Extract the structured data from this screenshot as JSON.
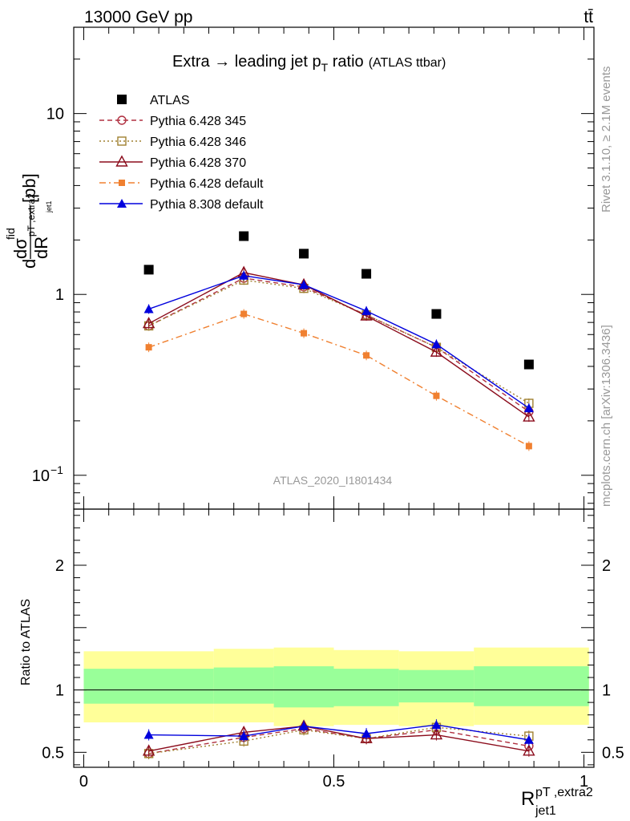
{
  "header": {
    "left": "13000 GeV pp",
    "right": "tt̄"
  },
  "side_labels": {
    "rivet": "Rivet 3.1.10, ≥ 2.1M events",
    "mcplots": "mcplots.cern.ch [arXiv:1306.3436]"
  },
  "watermark": "ATLAS_2020_I1801434",
  "colors": {
    "atlas": "#000000",
    "p345": "#b03040",
    "p346": "#a08030",
    "p370": "#8b0c1c",
    "pdef": "#f08030",
    "p8": "#0000dd",
    "band_outer": "#ffff99",
    "band_inner": "#99ff99"
  },
  "chart_data": [
    {
      "type": "line",
      "panel": "main",
      "title": "Extra → leading jet p",
      "title_sub": "T",
      "title_rest": " ratio",
      "title_note": "(ATLAS ttbar)",
      "ylabel": "dσ^fid / dR [pb]",
      "ylabel_main": "d",
      "ylabel_sigma": "dσ",
      "ylabel_sigma_sup": "fid",
      "ylabel_R": "dR",
      "ylabel_R_sup": "pT ,extra2",
      "ylabel_R_sub": "jet1",
      "ylabel_unit": "[pb]",
      "yscale": "log",
      "ylim": [
        0.065,
        30
      ],
      "xlim": [
        -0.02,
        1.02
      ],
      "yticks": [
        {
          "value": 10,
          "label": "10"
        },
        {
          "value": 1,
          "label": "1"
        },
        {
          "value": 0.1,
          "label": "10",
          "sup": "−1"
        }
      ],
      "x": [
        0.13,
        0.32,
        0.44,
        0.565,
        0.705,
        0.89
      ],
      "series": [
        {
          "name": "ATLAS",
          "key": "atlas",
          "marker": "square-filled",
          "line": "none",
          "values": [
            1.37,
            2.1,
            1.68,
            1.3,
            0.78,
            0.41
          ]
        },
        {
          "name": "Pythia 6.428 345",
          "key": "p345",
          "marker": "circle-open",
          "line": "dashed",
          "values": [
            0.67,
            1.23,
            1.1,
            0.77,
            0.51,
            0.225
          ]
        },
        {
          "name": "Pythia 6.428 346",
          "key": "p346",
          "marker": "square-open",
          "line": "dotted",
          "values": [
            0.67,
            1.2,
            1.08,
            0.77,
            0.51,
            0.25
          ]
        },
        {
          "name": "Pythia 6.428 370",
          "key": "p370",
          "marker": "triangle-open",
          "line": "solid",
          "values": [
            0.69,
            1.32,
            1.13,
            0.76,
            0.48,
            0.21
          ]
        },
        {
          "name": "Pythia 6.428 default",
          "key": "pdef",
          "marker": "square-small",
          "line": "dashdot",
          "values": [
            0.51,
            0.78,
            0.61,
            0.46,
            0.275,
            0.145
          ]
        },
        {
          "name": "Pythia 8.308 default",
          "key": "p8",
          "marker": "triangle-filled",
          "line": "solid",
          "values": [
            0.83,
            1.27,
            1.13,
            0.81,
            0.53,
            0.235
          ]
        }
      ]
    },
    {
      "type": "line",
      "panel": "ratio",
      "ylabel": "Ratio to ATLAS",
      "xlabel": "R",
      "xlabel_sup": "pT ,extra2",
      "xlabel_sub": "jet1",
      "ylim": [
        0.38,
        2.45
      ],
      "xlim": [
        -0.02,
        1.02
      ],
      "yticks": [
        {
          "value": 0.5,
          "label": "0.5"
        },
        {
          "value": 1,
          "label": "1"
        },
        {
          "value": 2,
          "label": "2"
        }
      ],
      "xticks": [
        {
          "value": 0,
          "label": "0"
        },
        {
          "value": 0.5,
          "label": "0.5"
        },
        {
          "value": 1,
          "label": "1"
        }
      ],
      "bins": [
        {
          "x0": 0.0,
          "x1": 0.26,
          "outer": [
            0.74,
            1.31
          ],
          "inner": [
            0.89,
            1.17
          ]
        },
        {
          "x0": 0.26,
          "x1": 0.38,
          "outer": [
            0.74,
            1.33
          ],
          "inner": [
            0.89,
            1.18
          ]
        },
        {
          "x0": 0.38,
          "x1": 0.5,
          "outer": [
            0.71,
            1.34
          ],
          "inner": [
            0.86,
            1.19
          ]
        },
        {
          "x0": 0.5,
          "x1": 0.63,
          "outer": [
            0.72,
            1.32
          ],
          "inner": [
            0.87,
            1.17
          ]
        },
        {
          "x0": 0.63,
          "x1": 0.78,
          "outer": [
            0.71,
            1.31
          ],
          "inner": [
            0.9,
            1.16
          ]
        },
        {
          "x0": 0.78,
          "x1": 1.01,
          "outer": [
            0.72,
            1.34
          ],
          "inner": [
            0.87,
            1.19
          ]
        }
      ],
      "x": [
        0.13,
        0.32,
        0.44,
        0.565,
        0.705,
        0.89
      ],
      "series": [
        {
          "name": "Pythia 6.428 345",
          "key": "p345",
          "values": [
            0.49,
            0.62,
            0.69,
            0.61,
            0.68,
            0.55
          ]
        },
        {
          "name": "Pythia 6.428 346",
          "key": "p346",
          "values": [
            0.49,
            0.59,
            0.68,
            0.61,
            0.7,
            0.63
          ]
        },
        {
          "name": "Pythia 6.428 370",
          "key": "p370",
          "values": [
            0.51,
            0.66,
            0.71,
            0.61,
            0.64,
            0.51
          ]
        },
        {
          "name": "Pythia 8.308 default",
          "key": "p8",
          "values": [
            0.64,
            0.63,
            0.71,
            0.65,
            0.72,
            0.6
          ]
        }
      ]
    }
  ]
}
